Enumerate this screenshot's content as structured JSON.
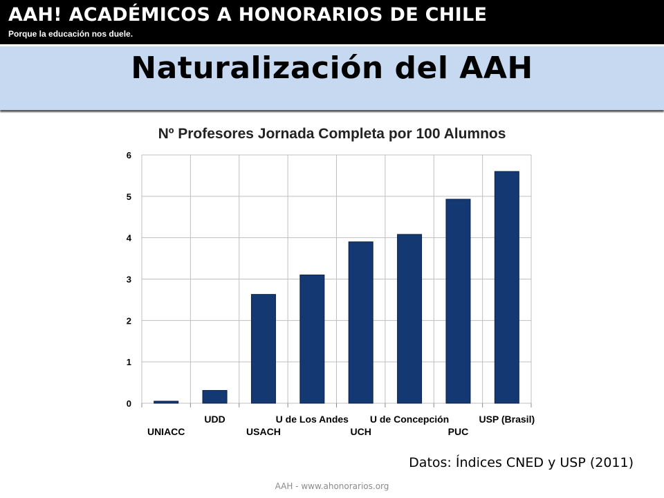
{
  "header": {
    "site_title": "AAH! ACADÉMICOS A HONORARIOS DE CHILE",
    "tagline": "Porque la educación nos duele."
  },
  "slide": {
    "title": "Naturalización del AAH",
    "source_note": "Datos: Índices CNED y USP (2011)",
    "footer": "AAH - www.ahonorarios.org"
  },
  "colors": {
    "bar": "#143872",
    "title_band": "#c6d9f1",
    "grid": "#bfbfbf"
  },
  "chart_data": {
    "type": "bar",
    "title": "Nº Profesores Jornada Completa por 100 Alumnos",
    "xlabel": "",
    "ylabel": "",
    "categories": [
      "UNIACC",
      "UDD",
      "USACH",
      "U de Los Andes",
      "UCH",
      "U de Concepción",
      "PUC",
      "USP (Brasil)"
    ],
    "values": [
      0.05,
      0.31,
      2.63,
      3.1,
      3.9,
      4.08,
      4.93,
      5.6
    ],
    "ylim": [
      0,
      6
    ],
    "yticks": [
      "0",
      "1",
      "2",
      "3",
      "4",
      "5",
      "6"
    ],
    "grid": true,
    "legend": "none"
  }
}
